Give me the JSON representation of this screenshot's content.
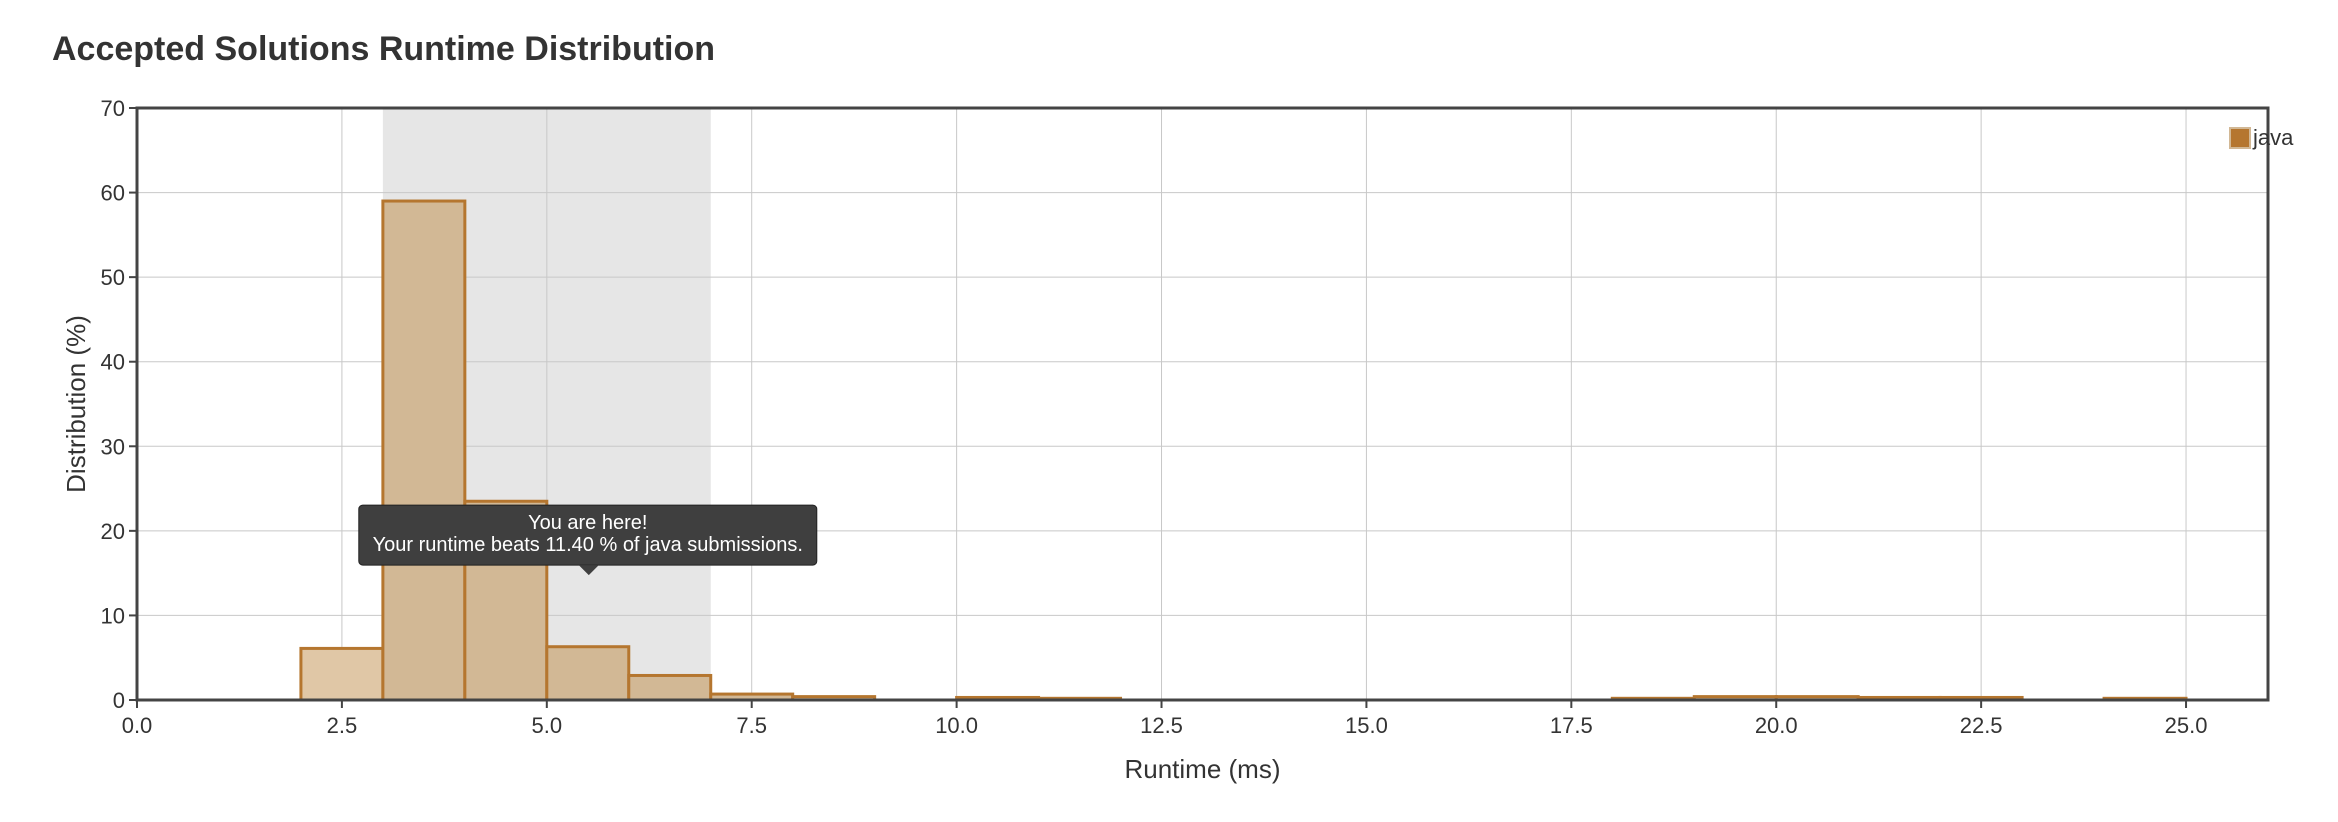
{
  "header": {
    "title": "Accepted Solutions Runtime Distribution"
  },
  "chart_data": {
    "type": "bar",
    "title": "Accepted Solutions Runtime Distribution",
    "xlabel": "Runtime (ms)",
    "ylabel": "Distribution (%)",
    "xlim": [
      0,
      26
    ],
    "ylim": [
      0,
      70
    ],
    "x_ticks": [
      "0.0",
      "2.5",
      "5.0",
      "7.5",
      "10.0",
      "12.5",
      "15.0",
      "17.5",
      "20.0",
      "22.5",
      "25.0"
    ],
    "x_tick_values": [
      0,
      2.5,
      5,
      7.5,
      10,
      12.5,
      15,
      17.5,
      20,
      22.5,
      25
    ],
    "y_ticks": [
      "0",
      "10",
      "20",
      "30",
      "40",
      "50",
      "60",
      "70"
    ],
    "y_tick_values": [
      0,
      10,
      20,
      30,
      40,
      50,
      60,
      70
    ],
    "grid": true,
    "legend": {
      "position": "top-right",
      "entries": [
        "java"
      ]
    },
    "series": [
      {
        "name": "java",
        "color": "#b5762f",
        "fill": "#d2b895",
        "bins": [
          {
            "x0": 2,
            "x1": 3,
            "value": 6.1
          },
          {
            "x0": 3,
            "x1": 4,
            "value": 59
          },
          {
            "x0": 4,
            "x1": 5,
            "value": 23.5
          },
          {
            "x0": 5,
            "x1": 6,
            "value": 6.3
          },
          {
            "x0": 6,
            "x1": 7,
            "value": 2.9
          },
          {
            "x0": 7,
            "x1": 8,
            "value": 0.7
          },
          {
            "x0": 8,
            "x1": 9,
            "value": 0.4
          },
          {
            "x0": 10,
            "x1": 11,
            "value": 0.3
          },
          {
            "x0": 11,
            "x1": 12,
            "value": 0.2
          },
          {
            "x0": 18,
            "x1": 19,
            "value": 0.2
          },
          {
            "x0": 19,
            "x1": 20,
            "value": 0.4
          },
          {
            "x0": 20,
            "x1": 21,
            "value": 0.4
          },
          {
            "x0": 21,
            "x1": 22,
            "value": 0.3
          },
          {
            "x0": 22,
            "x1": 23,
            "value": 0.3
          },
          {
            "x0": 24,
            "x1": 25,
            "value": 0.2
          }
        ]
      }
    ],
    "highlight": {
      "x0": 3,
      "x1": 7,
      "color": "#e6e6e6"
    },
    "current_bin": {
      "x0": 2,
      "x1": 3
    },
    "tooltip": {
      "line1": "You are here!",
      "line2": "Your runtime beats 11.40 % of java submissions.",
      "x": 5.5,
      "y": 19.5
    }
  }
}
